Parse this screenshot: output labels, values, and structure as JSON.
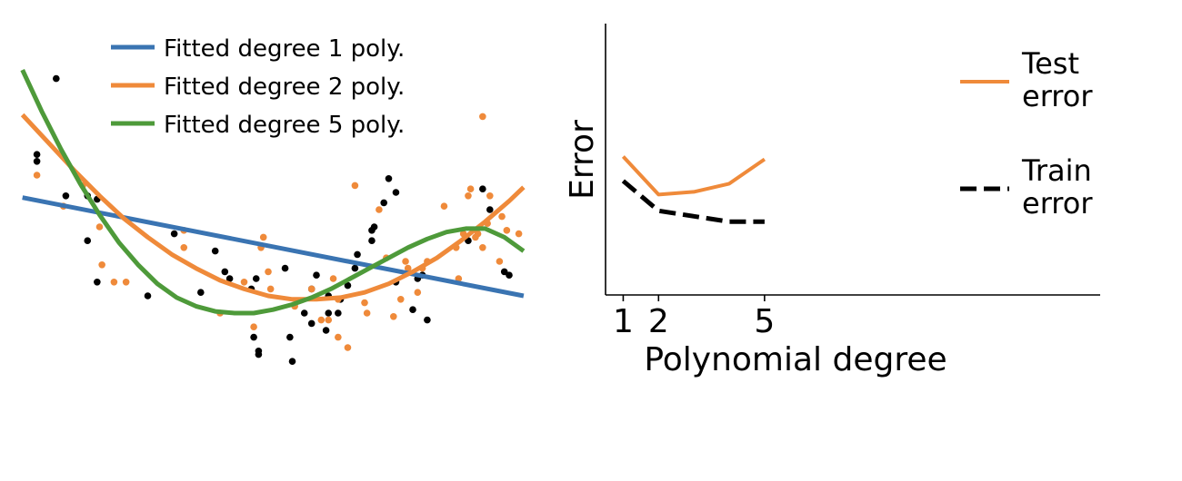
{
  "colors": {
    "deg1": "#3a74b2",
    "deg2": "#ef8a3a",
    "deg5": "#4e9a3a",
    "train_points": "#000000",
    "test_points": "#ef8a3a",
    "test_error": "#ef8a3a",
    "train_error": "#000000"
  },
  "chart_data": [
    {
      "type": "scatter",
      "title": "",
      "xlabel": "",
      "ylabel": "",
      "axes_visible": false,
      "legend_position": "top",
      "legend": [
        {
          "label": "Fitted degree 1 poly.",
          "color": "#3a74b2"
        },
        {
          "label": "Fitted degree 2 poly.",
          "color": "#ef8a3a"
        },
        {
          "label": "Fitted degree 5 poly.",
          "color": "#4e9a3a"
        }
      ],
      "xlim": [
        0,
        10
      ],
      "ylim": [
        0,
        10
      ],
      "series": [
        {
          "kind": "points",
          "color": "#000000",
          "points": [
            [
              0.6,
              9.3
            ],
            [
              0.2,
              7.1
            ],
            [
              0.2,
              6.9
            ],
            [
              0.8,
              5.9
            ],
            [
              1.25,
              5.9
            ],
            [
              1.25,
              4.6
            ],
            [
              1.45,
              5.8
            ],
            [
              1.45,
              3.4
            ],
            [
              2.5,
              3.0
            ],
            [
              3.05,
              4.8
            ],
            [
              3.6,
              3.1
            ],
            [
              3.9,
              4.3
            ],
            [
              4.1,
              3.7
            ],
            [
              4.2,
              3.5
            ],
            [
              4.65,
              3.2
            ],
            [
              4.75,
              3.5
            ],
            [
              4.7,
              1.8
            ],
            [
              4.8,
              1.4
            ],
            [
              4.8,
              1.3
            ],
            [
              5.35,
              3.8
            ],
            [
              5.45,
              1.8
            ],
            [
              5.5,
              1.1
            ],
            [
              5.75,
              2.5
            ],
            [
              5.9,
              2.2
            ],
            [
              5.9,
              3.2
            ],
            [
              6.0,
              3.6
            ],
            [
              6.2,
              2.0
            ],
            [
              6.25,
              2.5
            ],
            [
              6.25,
              3.0
            ],
            [
              6.45,
              2.5
            ],
            [
              6.5,
              2.9
            ],
            [
              6.65,
              3.3
            ],
            [
              6.8,
              3.8
            ],
            [
              6.85,
              4.2
            ],
            [
              7.15,
              4.9
            ],
            [
              7.15,
              4.6
            ],
            [
              7.2,
              5.0
            ],
            [
              7.4,
              5.7
            ],
            [
              7.5,
              6.4
            ],
            [
              7.65,
              3.4
            ],
            [
              7.65,
              6.0
            ],
            [
              8.0,
              2.6
            ],
            [
              8.1,
              3.5
            ],
            [
              8.2,
              3.6
            ],
            [
              8.3,
              2.3
            ],
            [
              9.15,
              4.6
            ],
            [
              9.45,
              6.1
            ],
            [
              9.6,
              5.5
            ],
            [
              9.9,
              3.7
            ],
            [
              10.0,
              3.6
            ]
          ]
        },
        {
          "kind": "points",
          "color": "#ef8a3a",
          "points": [
            [
              0.2,
              6.5
            ],
            [
              0.75,
              5.6
            ],
            [
              1.15,
              6.2
            ],
            [
              1.5,
              5.0
            ],
            [
              1.55,
              3.9
            ],
            [
              1.8,
              3.4
            ],
            [
              2.05,
              3.4
            ],
            [
              3.25,
              4.4
            ],
            [
              3.25,
              4.9
            ],
            [
              4.0,
              2.5
            ],
            [
              4.5,
              3.4
            ],
            [
              4.7,
              2.1
            ],
            [
              4.85,
              4.4
            ],
            [
              4.9,
              4.7
            ],
            [
              5.0,
              3.7
            ],
            [
              5.05,
              3.2
            ],
            [
              5.55,
              2.7
            ],
            [
              5.9,
              3.2
            ],
            [
              6.1,
              2.3
            ],
            [
              6.25,
              2.3
            ],
            [
              6.35,
              3.5
            ],
            [
              6.45,
              2.9
            ],
            [
              6.45,
              1.8
            ],
            [
              6.65,
              1.5
            ],
            [
              6.8,
              6.2
            ],
            [
              7.0,
              2.8
            ],
            [
              7.05,
              2.5
            ],
            [
              7.3,
              5.5
            ],
            [
              7.45,
              4.1
            ],
            [
              7.6,
              2.4
            ],
            [
              7.75,
              2.9
            ],
            [
              7.85,
              4.0
            ],
            [
              7.9,
              3.8
            ],
            [
              8.1,
              3.1
            ],
            [
              8.2,
              3.8
            ],
            [
              8.3,
              4.0
            ],
            [
              8.65,
              5.6
            ],
            [
              8.9,
              4.4
            ],
            [
              8.95,
              3.5
            ],
            [
              9.05,
              4.8
            ],
            [
              9.15,
              5.9
            ],
            [
              9.3,
              4.7
            ],
            [
              9.35,
              4.8
            ],
            [
              9.45,
              4.4
            ],
            [
              9.55,
              5.1
            ],
            [
              9.8,
              4.0
            ],
            [
              9.6,
              5.9
            ],
            [
              9.95,
              4.9
            ],
            [
              9.85,
              5.3
            ],
            [
              10.2,
              4.8
            ],
            [
              9.2,
              6.1
            ],
            [
              9.45,
              8.2
            ]
          ]
        },
        {
          "kind": "curve",
          "name": "Fitted degree 1 poly.",
          "color": "#3a74b2",
          "x": [
            -0.1,
            10.3
          ],
          "y": [
            5.85,
            3.0
          ]
        },
        {
          "kind": "curve",
          "name": "Fitted degree 2 poly.",
          "color": "#ef8a3a",
          "x": [
            -0.1,
            0.5,
            1.0,
            1.5,
            2.0,
            2.5,
            3.0,
            3.5,
            4.0,
            4.5,
            5.0,
            5.5,
            6.0,
            6.5,
            7.0,
            7.5,
            8.0,
            8.5,
            9.0,
            9.5,
            10.0,
            10.3
          ],
          "y": [
            8.25,
            7.35,
            6.6,
            5.9,
            5.25,
            4.7,
            4.2,
            3.8,
            3.45,
            3.2,
            3.0,
            2.9,
            2.9,
            2.95,
            3.1,
            3.35,
            3.7,
            4.1,
            4.6,
            5.15,
            5.75,
            6.15
          ]
        },
        {
          "kind": "curve",
          "name": "Fitted degree 5 poly.",
          "color": "#4e9a3a",
          "x": [
            -0.1,
            0.3,
            0.7,
            1.1,
            1.5,
            1.9,
            2.3,
            2.7,
            3.1,
            3.5,
            3.9,
            4.3,
            4.7,
            5.1,
            5.5,
            5.9,
            6.3,
            6.7,
            7.1,
            7.5,
            7.9,
            8.3,
            8.7,
            9.1,
            9.5,
            9.9,
            10.3
          ],
          "y": [
            9.55,
            8.35,
            7.25,
            6.25,
            5.35,
            4.55,
            3.9,
            3.35,
            2.95,
            2.7,
            2.55,
            2.5,
            2.5,
            2.6,
            2.75,
            2.95,
            3.2,
            3.5,
            3.8,
            4.1,
            4.4,
            4.65,
            4.85,
            4.95,
            4.95,
            4.7,
            4.3
          ]
        }
      ]
    },
    {
      "type": "line",
      "title": "",
      "xlabel": "Polynomial degree",
      "ylabel": "Error",
      "xlim": [
        0.5,
        14.5
      ],
      "ylim": [
        0,
        10
      ],
      "xticks": [
        1,
        2,
        5
      ],
      "xtick_labels": [
        "1",
        "2",
        "5"
      ],
      "legend_position": "right",
      "legend": [
        {
          "label_lines": [
            "Test",
            "error"
          ],
          "color": "#ef8a3a",
          "style": "solid"
        },
        {
          "label_lines": [
            "Train",
            "error"
          ],
          "color": "#000000",
          "style": "dashed"
        }
      ],
      "series": [
        {
          "name": "Test error",
          "color": "#ef8a3a",
          "style": "solid",
          "x": [
            1,
            2,
            3,
            4,
            5
          ],
          "y": [
            5.1,
            3.7,
            3.8,
            4.1,
            5.0
          ]
        },
        {
          "name": "Train error",
          "color": "#000000",
          "style": "dashed",
          "x": [
            1,
            2,
            3,
            4,
            5
          ],
          "y": [
            4.2,
            3.1,
            2.9,
            2.7,
            2.7
          ]
        }
      ]
    }
  ]
}
